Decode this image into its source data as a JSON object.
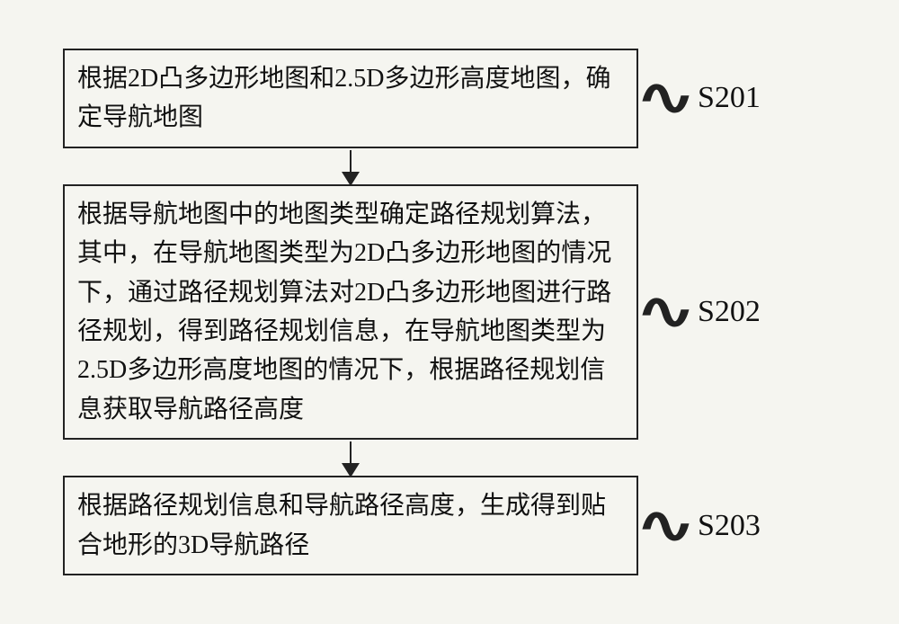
{
  "flowchart": {
    "type": "flowchart",
    "direction": "vertical",
    "box_border_color": "#222222",
    "box_border_width": 2,
    "text_color": "#111111",
    "background_color": "#f5f5f0",
    "box_font_size": 28,
    "label_font_size": 34,
    "connector_symbol": "∿",
    "arrow_color": "#222222",
    "steps": [
      {
        "id": "s201",
        "label": "S201",
        "text": "根据2D凸多边形地图和2.5D多边形高度地图，确定导航地图"
      },
      {
        "id": "s202",
        "label": "S202",
        "text": "根据导航地图中的地图类型确定路径规划算法，其中，在导航地图类型为2D凸多边形地图的情况下，通过路径规划算法对2D凸多边形地图进行路径规划，得到路径规划信息，在导航地图类型为2.5D多边形高度地图的情况下，根据路径规划信息获取导航路径高度"
      },
      {
        "id": "s203",
        "label": "S203",
        "text": "根据路径规划信息和导航路径高度，生成得到贴合地形的3D导航路径"
      }
    ]
  }
}
